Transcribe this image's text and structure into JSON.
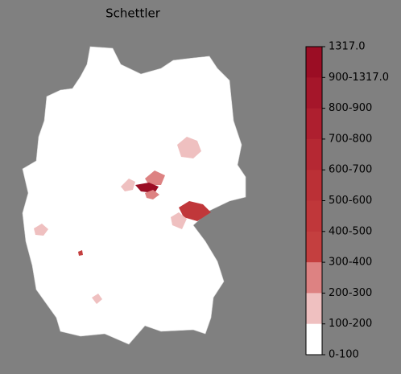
{
  "title": "Schettler",
  "colorbar": {
    "ticks": [
      "1317.0",
      "900-1317.0",
      "800-900",
      "700-800",
      "600-700",
      "500-600",
      "400-500",
      "300-400",
      "200-300",
      "100-200",
      "0-100"
    ],
    "colors": [
      "#9b0d24",
      "#a5162a",
      "#ae1f2f",
      "#b52833",
      "#bb3036",
      "#c0373a",
      "#c43f3f",
      "#dd8282",
      "#efc0c0",
      "#ffffff"
    ]
  }
}
